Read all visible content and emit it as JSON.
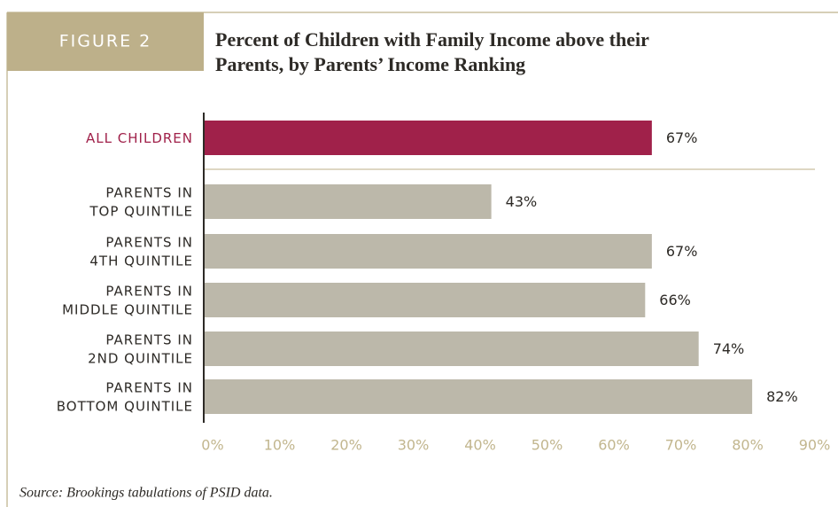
{
  "chart_data": {
    "type": "barh",
    "badge": "FIGURE 2",
    "title": [
      "Percent of Children with Family Income above their",
      "Parents, by Parents’ Income Ranking"
    ],
    "categories": [
      [
        "ALL CHILDREN"
      ],
      [
        "PARENTS IN",
        "TOP QUINTILE"
      ],
      [
        "PARENTS IN",
        "4TH QUINTILE"
      ],
      [
        "PARENTS IN",
        "MIDDLE QUINTILE"
      ],
      [
        "PARENTS IN",
        "2ND QUINTILE"
      ],
      [
        "PARENTS IN",
        "BOTTOM QUINTILE"
      ]
    ],
    "values": [
      67,
      43,
      67,
      66,
      74,
      82
    ],
    "value_labels": [
      "67%",
      "43%",
      "67%",
      "66%",
      "74%",
      "82%"
    ],
    "colors": [
      "#a0214a",
      "#bcb8aa",
      "#bcb8aa",
      "#bcb8aa",
      "#bcb8aa",
      "#bcb8aa"
    ],
    "label_colors": [
      "#a0214a",
      "#2d2a26",
      "#2d2a26",
      "#2d2a26",
      "#2d2a26",
      "#2d2a26"
    ],
    "xlim": [
      0,
      90
    ],
    "xticks": [
      {
        "value": 0,
        "label": "0%"
      },
      {
        "value": 10,
        "label": "10%"
      },
      {
        "value": 20,
        "label": "20%"
      },
      {
        "value": 30,
        "label": "30%"
      },
      {
        "value": 40,
        "label": "40%"
      },
      {
        "value": 50,
        "label": "50%"
      },
      {
        "value": 60,
        "label": "60%"
      },
      {
        "value": 70,
        "label": "70%"
      },
      {
        "value": 80,
        "label": "80%"
      },
      {
        "value": 90,
        "label": "90%"
      }
    ],
    "source": "Source: Brookings tabulations of PSID data."
  }
}
